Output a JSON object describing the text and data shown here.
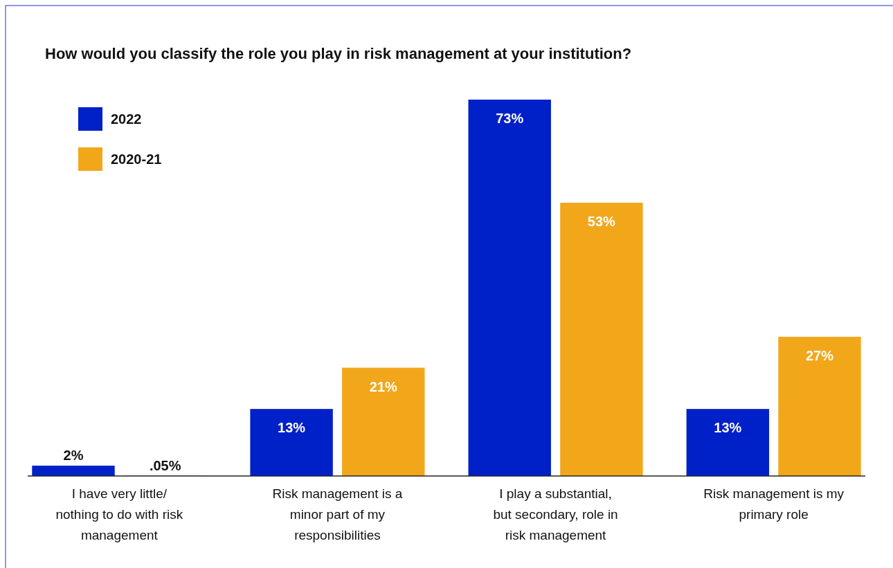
{
  "chart_data": {
    "type": "bar",
    "title": "How would you classify the role you play in risk management at your institution?",
    "categories": [
      "I have very little/ nothing to do with risk management",
      "Risk management is a minor part of my responsibilities",
      "I play a substantial, but secondary, role in risk management",
      "Risk management is my primary role"
    ],
    "series": [
      {
        "name": "2022",
        "color": "#0020c8",
        "values": [
          2,
          13,
          73,
          13
        ],
        "value_labels": [
          "2%",
          "13%",
          "73%",
          "13%"
        ]
      },
      {
        "name": "2020-21",
        "color": "#f2a71b",
        "values": [
          0.05,
          21,
          53,
          27
        ],
        "value_labels": [
          ".05%",
          "21%",
          "53%",
          "27%"
        ]
      }
    ],
    "legend": "top left"
  }
}
